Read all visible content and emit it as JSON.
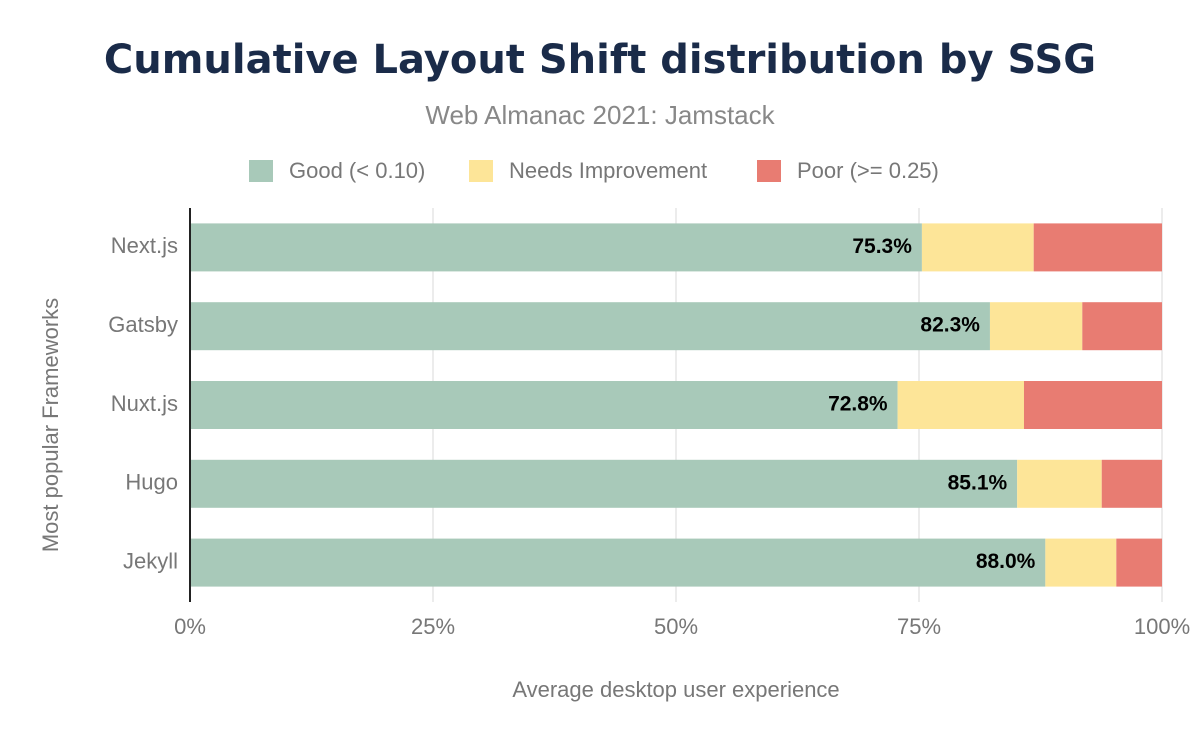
{
  "chart_data": {
    "type": "stacked-bar-horizontal",
    "title": "Cumulative Layout Shift distribution by SSG",
    "subtitle": "Web Almanac 2021: Jamstack",
    "x_label": "Average desktop user experience",
    "y_label": "Most popular Frameworks",
    "categories": [
      "Next.js",
      "Gatsby",
      "Nuxt.js",
      "Hugo",
      "Jekyll"
    ],
    "series": [
      {
        "name": "Good (< 0.10)",
        "color": "#a8c9b9",
        "values": [
          75.3,
          82.3,
          72.8,
          85.1,
          88.0
        ],
        "value_labels": [
          "75.3%",
          "82.3%",
          "72.8%",
          "85.1%",
          "88.0%"
        ]
      },
      {
        "name": "Needs Improvement",
        "color": "#fde598",
        "values": [
          11.5,
          9.5,
          13.0,
          8.7,
          7.3
        ]
      },
      {
        "name": "Poor (>= 0.25)",
        "color": "#e87c72",
        "values": [
          13.2,
          8.2,
          14.2,
          6.2,
          4.7
        ]
      }
    ],
    "xlim": [
      0,
      100
    ],
    "xticks": [
      {
        "value": 0,
        "label": "0%"
      },
      {
        "value": 25,
        "label": "25%"
      },
      {
        "value": 50,
        "label": "50%"
      },
      {
        "value": 75,
        "label": "75%"
      },
      {
        "value": 100,
        "label": "100%"
      }
    ],
    "grid": true
  }
}
